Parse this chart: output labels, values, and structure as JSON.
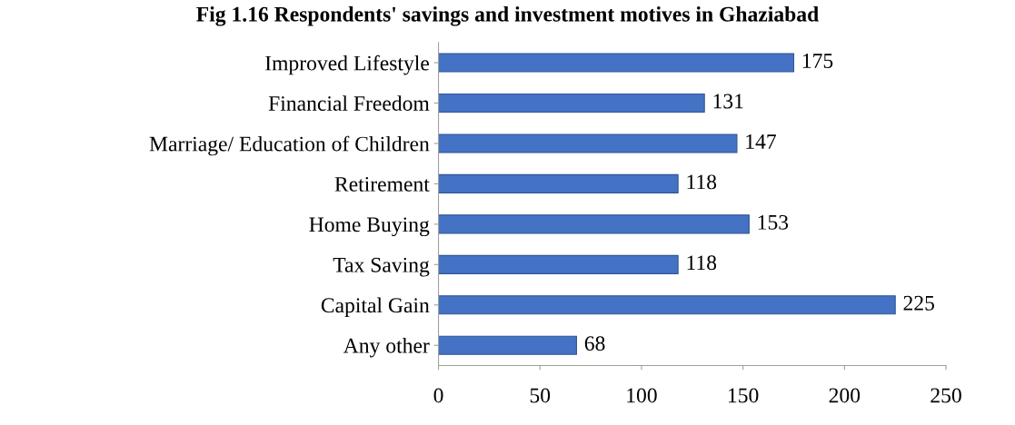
{
  "chart_data": {
    "type": "bar",
    "orientation": "horizontal",
    "title": "Fig 1.16 Respondents' savings and investment motives in Ghaziabad",
    "categories": [
      "Improved Lifestyle",
      "Financial Freedom",
      "Marriage/ Education of Children",
      "Retirement",
      "Home Buying",
      "Tax Saving",
      "Capital Gain",
      "Any other"
    ],
    "values": [
      175,
      131,
      147,
      118,
      153,
      118,
      225,
      68
    ],
    "color": "#4472c4",
    "data_labels": true,
    "xlim": [
      0,
      250
    ],
    "xticks": [
      0,
      50,
      100,
      150,
      200,
      250
    ],
    "grid": false,
    "legend": false
  }
}
